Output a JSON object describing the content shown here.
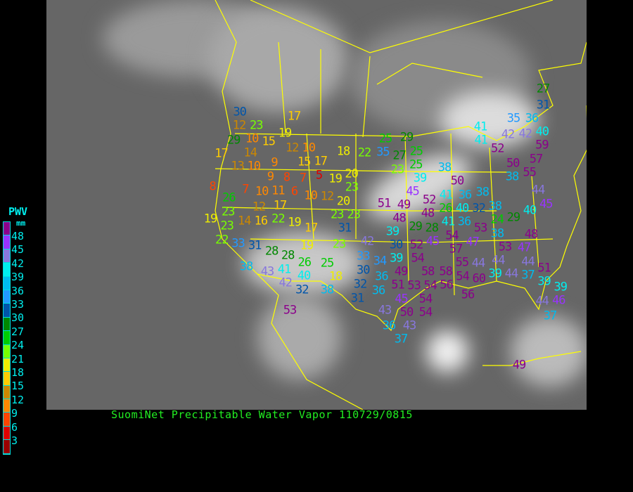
{
  "title": "SuomiNet Precipitable Water Vapor 110729/0815",
  "legend": {
    "title": "PWV",
    "unit": "mm",
    "labels": [
      "48",
      "45",
      "42",
      "39",
      "36",
      "33",
      "30",
      "27",
      "24",
      "21",
      "18",
      "15",
      "12",
      "9",
      "6",
      "3"
    ],
    "colors": [
      "#8b008b",
      "#9933ff",
      "#8877dd",
      "#00eeee",
      "#00bbee",
      "#2299ff",
      "#0055aa",
      "#008800",
      "#00cc00",
      "#77ff00",
      "#eeee00",
      "#ffcc00",
      "#cc8800",
      "#ff8800",
      "#ff4400",
      "#dd0000",
      "#990000"
    ]
  },
  "colors": {
    "map_background": "#666666",
    "borders": "#ffff00",
    "title": "#22ee22",
    "legend_text": "#00eeee"
  },
  "stations": [
    17,
    30,
    23,
    12,
    29,
    19,
    10,
    15,
    17,
    14,
    12,
    10,
    18,
    22,
    13,
    10,
    9,
    15,
    17,
    5,
    9,
    8,
    7,
    19,
    20,
    23,
    8,
    7,
    10,
    11,
    6,
    10,
    12,
    20,
    26,
    12,
    17,
    23,
    19,
    14,
    16,
    22,
    19,
    17,
    23,
    23,
    31,
    23,
    22,
    33,
    31,
    19,
    23,
    28,
    28,
    26,
    25,
    38,
    41,
    43,
    40,
    18,
    42,
    32,
    38,
    53,
    25,
    29,
    35,
    27,
    25,
    41,
    52,
    23,
    25,
    38,
    39,
    45,
    50,
    41,
    36,
    38,
    51,
    49,
    52,
    40,
    32,
    38,
    48,
    26,
    48,
    41,
    36,
    29,
    28,
    54,
    39,
    38,
    47,
    30,
    42,
    52,
    45,
    57,
    33,
    34,
    39,
    54,
    55,
    44,
    49,
    58,
    54,
    53,
    58,
    56,
    54,
    60,
    44,
    30,
    36,
    32,
    36,
    51,
    31,
    54,
    56,
    45,
    54,
    43,
    50,
    43,
    36,
    37,
    27,
    31,
    35,
    36,
    42,
    40,
    41,
    42,
    59,
    57,
    50,
    38,
    55,
    44,
    45,
    40,
    29,
    24,
    53,
    48,
    53,
    47,
    44,
    44,
    39,
    51,
    37,
    39,
    39,
    44,
    46,
    37,
    49
  ]
}
